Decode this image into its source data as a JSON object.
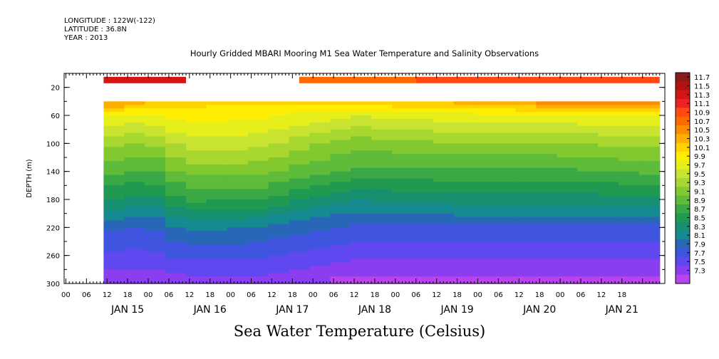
{
  "header": {
    "lines": [
      "LONGITUDE : 122W(-122)",
      "LATITUDE : 36.8N",
      "YEAR : 2013"
    ]
  },
  "chart_data": {
    "type": "heatmap",
    "title": "Hourly Gridded MBARI Mooring M1 Sea Water Temperature and Salinity Observations",
    "subtitle": "Sea Water Temperature (Celsius)",
    "xlabel": "",
    "ylabel": "DEPTH (m)",
    "y_axis": {
      "range": [
        300,
        0
      ],
      "inverted": true,
      "tick_labels": [
        20,
        60,
        100,
        140,
        180,
        220,
        260,
        300
      ]
    },
    "x_axis": {
      "hour_labels": [
        "00",
        "06",
        "12",
        "18",
        "00",
        "06",
        "12",
        "18",
        "00",
        "06",
        "12",
        "18",
        "00",
        "06",
        "12",
        "18",
        "00",
        "06",
        "12",
        "18",
        "00",
        "06",
        "12",
        "18",
        "00",
        "06",
        "12",
        "18"
      ],
      "date_labels": [
        "JAN 15",
        "JAN 16",
        "JAN 17",
        "JAN 18",
        "JAN 19",
        "JAN 20",
        "JAN 21"
      ],
      "start": "JAN 14 18:00",
      "end": "JAN 21 23:00"
    },
    "colorbar": {
      "labels": [
        "11.7",
        "11.5",
        "11.3",
        "11.1",
        "10.9",
        "10.7",
        "10.5",
        "10.3",
        "10.1",
        "9.9",
        "9.7",
        "9.5",
        "9.3",
        "9.1",
        "8.9",
        "8.7",
        "8.5",
        "8.3",
        "8.1",
        "7.9",
        "7.7",
        "7.5",
        "7.3"
      ],
      "colors": [
        "#8b1a1a",
        "#b31010",
        "#d41515",
        "#ee2222",
        "#ff4a14",
        "#ff6a00",
        "#ff8c00",
        "#ffad00",
        "#ffd200",
        "#ffee00",
        "#e6ef1a",
        "#c8e430",
        "#a8d830",
        "#82c930",
        "#5fbb3a",
        "#3aa845",
        "#1f9a50",
        "#179070",
        "#158a90",
        "#2866b8",
        "#3f55e0",
        "#6048f0",
        "#8a3ef0",
        "#b844ee"
      ],
      "min": 7.3,
      "max": 11.7
    },
    "surface_layer": {
      "depth": 10,
      "segments": [
        {
          "from": "JAN 15 05:00",
          "to": "JAN 16 05:00",
          "value": 11.2
        },
        {
          "from": "JAN 17 14:00",
          "to": "JAN 19 00:00",
          "value": 10.6
        },
        {
          "from": "JAN 19 00:00",
          "to": "JAN 21 23:00",
          "value": 10.9
        }
      ]
    },
    "profile": {
      "depth_top": 40,
      "depth_bottom": 300,
      "columns": [
        {
          "time": "JAN 15 05:00",
          "values": {
            "40": 10.5,
            "60": 9.9,
            "100": 9.4,
            "140": 9.0,
            "180": 8.6,
            "220": 8.1,
            "260": 7.8,
            "300": 7.5
          }
        },
        {
          "time": "JAN 15 18:00",
          "values": {
            "40": 10.3,
            "60": 9.8,
            "100": 9.3,
            "140": 8.9,
            "180": 8.5,
            "220": 8.0,
            "260": 7.8,
            "300": 7.5
          }
        },
        {
          "time": "JAN 16 05:00",
          "values": {
            "40": 10.1,
            "60": 10.0,
            "100": 9.6,
            "140": 9.2,
            "180": 8.8,
            "220": 8.3,
            "260": 7.9,
            "300": 7.6
          }
        },
        {
          "time": "JAN 17 00:00",
          "values": {
            "40": 10.1,
            "60": 9.9,
            "100": 9.6,
            "140": 9.2,
            "180": 8.8,
            "220": 8.2,
            "260": 7.9,
            "300": 7.6
          }
        },
        {
          "time": "JAN 18 06:00",
          "values": {
            "40": 10.2,
            "60": 9.7,
            "100": 9.2,
            "140": 8.9,
            "180": 8.4,
            "220": 8.0,
            "260": 7.7,
            "300": 7.4
          }
        },
        {
          "time": "JAN 19 12:00",
          "values": {
            "40": 10.3,
            "60": 9.8,
            "100": 9.3,
            "140": 8.9,
            "180": 8.5,
            "220": 8.0,
            "260": 7.7,
            "300": 7.4
          }
        },
        {
          "time": "JAN 20 12:00",
          "values": {
            "40": 10.5,
            "60": 9.8,
            "100": 9.3,
            "140": 8.9,
            "180": 8.5,
            "220": 8.0,
            "260": 7.7,
            "300": 7.4
          }
        },
        {
          "time": "JAN 21 23:00",
          "values": {
            "40": 10.6,
            "60": 9.9,
            "100": 9.4,
            "140": 9.0,
            "180": 8.5,
            "220": 8.0,
            "260": 7.7,
            "300": 7.4
          }
        }
      ]
    },
    "grid": false,
    "legend": "right"
  }
}
